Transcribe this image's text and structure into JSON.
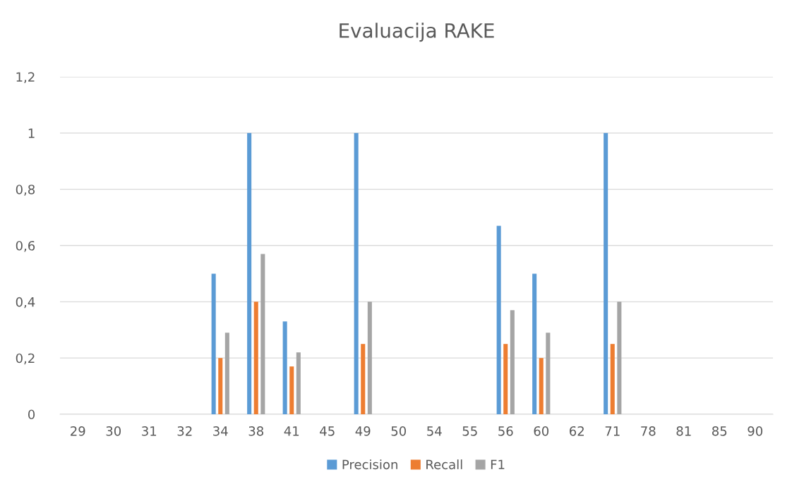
{
  "chart_data": {
    "type": "bar",
    "title": "Evaluacija RAKE",
    "categories": [
      "29",
      "30",
      "31",
      "32",
      "34",
      "38",
      "41",
      "45",
      "49",
      "50",
      "54",
      "55",
      "56",
      "60",
      "62",
      "71",
      "78",
      "81",
      "85",
      "90"
    ],
    "series": [
      {
        "name": "Precision",
        "color": "#5b9bd5",
        "values": [
          0,
          0,
          0,
          0,
          0.5,
          1,
          0.33,
          0,
          1,
          0,
          0,
          0,
          0.67,
          0.5,
          0,
          1,
          0,
          0,
          0,
          0
        ]
      },
      {
        "name": "Recall",
        "color": "#ed7d31",
        "values": [
          0,
          0,
          0,
          0,
          0.2,
          0.4,
          0.17,
          0,
          0.25,
          0,
          0,
          0,
          0.25,
          0.2,
          0,
          0.25,
          0,
          0,
          0,
          0
        ]
      },
      {
        "name": "F1",
        "color": "#a5a5a5",
        "values": [
          0,
          0,
          0,
          0,
          0.29,
          0.57,
          0.22,
          0,
          0.4,
          0,
          0,
          0,
          0.37,
          0.29,
          0,
          0.4,
          0,
          0,
          0,
          0
        ]
      }
    ],
    "ylim": [
      0,
      1.2
    ],
    "yticks": [
      0,
      {
        "value": 0.2,
        "label": "0,2"
      },
      {
        "value": 0.4,
        "label": "0,4"
      },
      {
        "value": 0.6,
        "label": "0,6"
      },
      {
        "value": 0.8,
        "label": "0,8"
      },
      1,
      {
        "value": 1.2,
        "label": "1,2"
      }
    ],
    "grid": "y",
    "legend": "bottom"
  }
}
